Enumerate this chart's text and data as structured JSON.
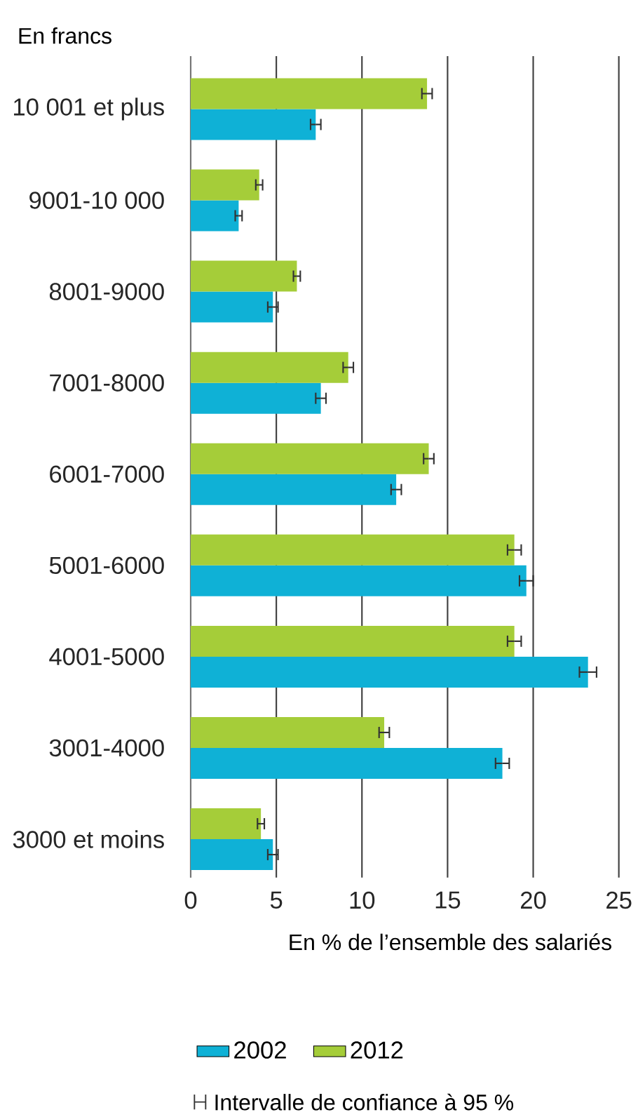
{
  "chart_data": {
    "type": "bar",
    "orientation": "horizontal",
    "ylabel": "En francs",
    "xlabel": "En % de l’ensemble des salariés",
    "categories": [
      "10 001 et plus",
      "9001-10 000",
      "8001-9000",
      "7001-8000",
      "6001-7000",
      "5001-6000",
      "4001-5000",
      "3001-4000",
      "3000 et moins"
    ],
    "series": [
      {
        "name": "2002",
        "color": "#0fb1d6",
        "values": [
          7.3,
          2.8,
          4.8,
          7.6,
          12.0,
          19.6,
          23.2,
          18.2,
          4.8
        ],
        "errors": [
          0.3,
          0.2,
          0.3,
          0.3,
          0.3,
          0.4,
          0.5,
          0.4,
          0.3
        ]
      },
      {
        "name": "2012",
        "color": "#a5cd39",
        "values": [
          13.8,
          4.0,
          6.2,
          9.2,
          13.9,
          18.9,
          18.9,
          11.3,
          4.1
        ],
        "errors": [
          0.3,
          0.2,
          0.2,
          0.3,
          0.3,
          0.4,
          0.4,
          0.3,
          0.2
        ]
      }
    ],
    "xlim": [
      0,
      25
    ],
    "xticks": [
      0,
      5,
      10,
      15,
      20,
      25
    ],
    "grid": "x",
    "legend": "bottom",
    "annotations": [
      "Intervalle de confiance à 95 %"
    ]
  }
}
